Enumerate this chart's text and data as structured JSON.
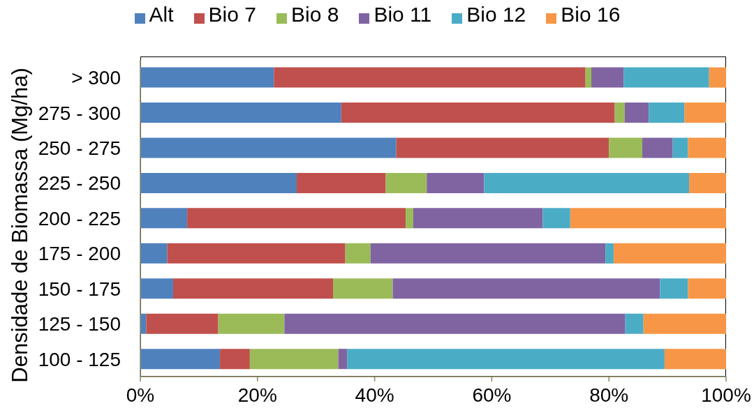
{
  "chart_data": {
    "type": "bar",
    "orientation": "horizontal",
    "stacked": true,
    "ylabel": "Densidade de Biomassa (Mg/ha)",
    "categories": [
      "> 300",
      "275 - 300",
      "250 - 275",
      "225 - 250",
      "200 - 225",
      "175 - 200",
      "150 - 175",
      "125 - 150",
      "100 - 125"
    ],
    "series": [
      {
        "name": "Alt",
        "color": "#4f81bd",
        "values": [
          22.8,
          34.3,
          43.7,
          26.7,
          8.0,
          4.6,
          5.6,
          1.0,
          13.6
        ]
      },
      {
        "name": "Bio 7",
        "color": "#c0504d",
        "values": [
          53.2,
          46.7,
          36.3,
          15.2,
          37.3,
          30.4,
          27.3,
          12.3,
          5.1
        ]
      },
      {
        "name": "Bio 8",
        "color": "#9bbb59",
        "values": [
          1.0,
          1.7,
          5.7,
          7.0,
          1.3,
          4.3,
          10.2,
          11.3,
          15.1
        ]
      },
      {
        "name": "Bio 11",
        "color": "#8064a2",
        "values": [
          5.5,
          4.1,
          5.2,
          9.8,
          22.1,
          40.1,
          45.6,
          58.2,
          1.5
        ]
      },
      {
        "name": "Bio 12",
        "color": "#4bacc6",
        "values": [
          14.6,
          6.1,
          2.6,
          35.0,
          4.7,
          1.4,
          4.8,
          3.1,
          54.2
        ]
      },
      {
        "name": "Bio 16",
        "color": "#f79646",
        "values": [
          2.9,
          7.1,
          6.5,
          6.3,
          26.6,
          19.2,
          6.5,
          14.1,
          10.5
        ]
      }
    ],
    "xlim": [
      0,
      100
    ],
    "xticks": [
      {
        "value": 0,
        "label": "0%"
      },
      {
        "value": 20,
        "label": "20%"
      },
      {
        "value": 40,
        "label": "40%"
      },
      {
        "value": 60,
        "label": "60%"
      },
      {
        "value": 80,
        "label": "80%"
      },
      {
        "value": 100,
        "label": "100%"
      }
    ],
    "legend": "top"
  }
}
